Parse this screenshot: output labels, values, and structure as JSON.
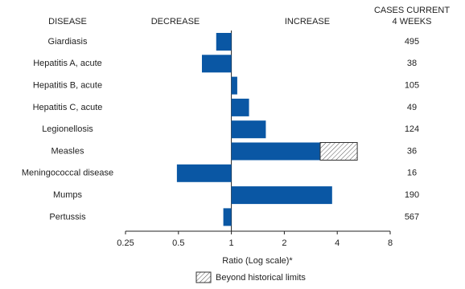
{
  "chart_data": {
    "type": "bar",
    "orientation": "horizontal",
    "log_scale": true,
    "headers": {
      "category": "DISEASE",
      "decrease": "DECREASE",
      "increase": "INCREASE",
      "count": [
        "CASES CURRENT",
        "4 WEEKS"
      ]
    },
    "categories": [
      "Giardiasis",
      "Hepatitis A, acute",
      "Hepatitis B, acute",
      "Hepatitis C, acute",
      "Legionellosis",
      "Measles",
      "Meningococcal disease",
      "Mumps",
      "Pertussis"
    ],
    "values": [
      0.82,
      0.68,
      1.08,
      1.26,
      1.57,
      5.2,
      0.49,
      3.74,
      0.9
    ],
    "color": "#0a57a4",
    "historical_limits": {
      "name": "Beyond historical limits",
      "values": [
        null,
        null,
        null,
        null,
        null,
        3.2,
        null,
        null,
        null
      ]
    },
    "cases": [
      495,
      38,
      105,
      49,
      124,
      36,
      16,
      190,
      567
    ],
    "xlim": [
      0.25,
      8
    ],
    "xticks": [
      0.25,
      0.5,
      1,
      2,
      4,
      8
    ],
    "xlabel": "Ratio (Log scale)*"
  }
}
